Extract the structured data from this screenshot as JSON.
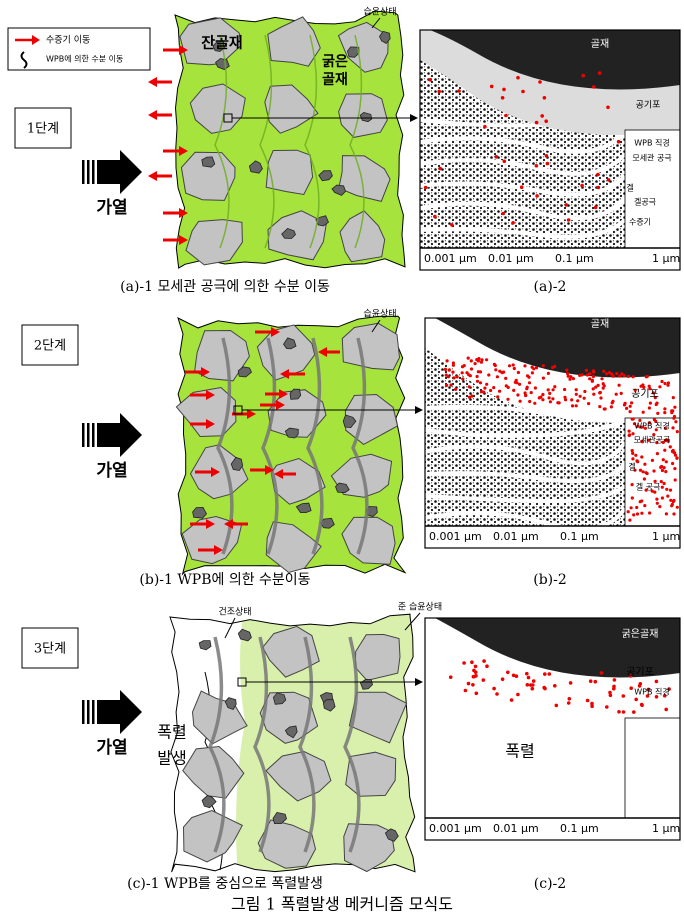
{
  "legend": {
    "items": [
      "수증기 이동",
      "WPB에 의한 수분 이동"
    ]
  },
  "panels": [
    {
      "stage": "1단계",
      "heat": "가열",
      "states": [
        "습윤상태"
      ],
      "left_labels": [
        "잔골재",
        "굵은",
        "골재"
      ],
      "right_labels": [
        "골재",
        "공기포",
        "WPB 직경",
        "모세관 공극",
        "겔",
        "겔공극",
        "수증기"
      ],
      "scale": [
        "0.001 μm",
        "0.01 μm",
        "0.1 μm",
        "1 μm"
      ],
      "captions": [
        "(a)-1 모세관 공극에 의한 수분 이동",
        "(a)-2"
      ]
    },
    {
      "stage": "2단계",
      "heat": "가열",
      "states": [
        "습윤상태"
      ],
      "right_labels": [
        "골재",
        "공기포",
        "WPB 직경",
        "모세관공극",
        "겔",
        "겔 공극"
      ],
      "scale": [
        "0.001 μm",
        "0.01 μm",
        "0.1 μm",
        "1 μm"
      ],
      "captions": [
        "(b)-1 WPB에 의한 수분이동",
        "(b)-2"
      ]
    },
    {
      "stage": "3단계",
      "heat": "가열",
      "states": [
        "건조상태",
        "준 습윤상태"
      ],
      "left_labels": [
        "폭렬",
        "발생"
      ],
      "right_labels": [
        "굵은골재",
        "공기포",
        "WPB 직경",
        "폭렬"
      ],
      "scale": [
        "0.001 μm",
        "0.01 μm",
        "0.1 μm",
        "1 μm"
      ],
      "captions": [
        "(c)-1 WPB를 중심으로 폭렬발생",
        "(c)-2"
      ]
    }
  ],
  "caption": "그림 1 폭렬발생 메커니즘 모식도"
}
